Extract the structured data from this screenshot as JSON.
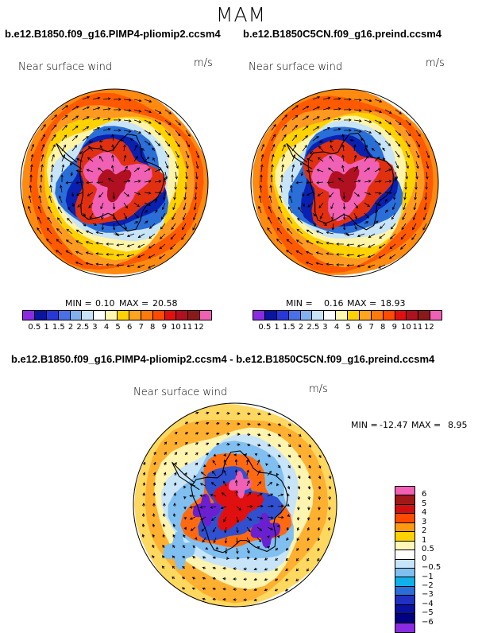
{
  "season": "MAM",
  "panels": [
    {
      "case_title": "b.e12.B1850.f09_g16.PIMP4-pliomip2.ccsm4",
      "field_label": "Near surface wind",
      "units": "m/s",
      "min_text": "MIN =",
      "min_value": "0.10",
      "max_text": "MAX =",
      "max_value": "20.58"
    },
    {
      "case_title": "b.e12.B1850C5CN.f09_g16.preind.ccsm4",
      "field_label": "Near surface wind",
      "units": "m/s",
      "min_text": "MIN =",
      "min_value": "0.16",
      "max_text": "MAX =",
      "max_value": "18.93"
    },
    {
      "case_title": "b.e12.B1850.f09_g16.PIMP4-pliomip2.ccsm4 - b.e12.B1850C5CN.f09_g16.preind.ccsm4",
      "field_label": "Near surface wind",
      "units": "m/s",
      "min_text": "MIN =",
      "min_value": "-12.47",
      "max_text": "MAX =",
      "max_value": "8.95"
    }
  ],
  "chart_data": [
    {
      "type": "heatmap",
      "title": "b.e12.B1850.f09_g16.PIMP4-pliomip2.ccsm4",
      "subtitle": "Near surface wind",
      "units": "m/s",
      "projection": "south polar stereographic",
      "min": 0.1,
      "max": 20.58,
      "colorbar_levels": [
        "0.5",
        "1",
        "1.5",
        "2",
        "2.5",
        "3",
        "4",
        "5",
        "6",
        "7",
        "8",
        "9",
        "10",
        "11",
        "12"
      ],
      "colorbar_colors": [
        "#8a2be2",
        "#0a14a0",
        "#2838d8",
        "#4a70e8",
        "#80b0f0",
        "#c8e4f8",
        "#ffffff",
        "#fff8b0",
        "#ffd200",
        "#ffa41c",
        "#ff7a0a",
        "#ff4a00",
        "#e01010",
        "#b01020",
        "#8a1a1a",
        "#f060b4"
      ]
    },
    {
      "type": "heatmap",
      "title": "b.e12.B1850C5CN.f09_g16.preind.ccsm4",
      "subtitle": "Near surface wind",
      "units": "m/s",
      "projection": "south polar stereographic",
      "min": 0.16,
      "max": 18.93,
      "colorbar_levels": [
        "0.5",
        "1",
        "1.5",
        "2",
        "2.5",
        "3",
        "4",
        "5",
        "6",
        "7",
        "8",
        "9",
        "10",
        "11",
        "12"
      ],
      "colorbar_colors": [
        "#8a2be2",
        "#0a14a0",
        "#2838d8",
        "#4a70e8",
        "#80b0f0",
        "#c8e4f8",
        "#ffffff",
        "#fff8b0",
        "#ffd200",
        "#ffa41c",
        "#ff7a0a",
        "#ff4a00",
        "#e01010",
        "#b01020",
        "#8a1a1a",
        "#f060b4"
      ]
    },
    {
      "type": "heatmap",
      "title": "b.e12.B1850.f09_g16.PIMP4-pliomip2.ccsm4 - b.e12.B1850C5CN.f09_g16.preind.ccsm4",
      "subtitle": "Near surface wind",
      "units": "m/s",
      "projection": "south polar stereographic",
      "min": -12.47,
      "max": 8.95,
      "colorbar_levels": [
        "6",
        "5",
        "4",
        "3",
        "2",
        "1",
        "0.5",
        "0",
        "−0.5",
        "−1",
        "−2",
        "−3",
        "−4",
        "−5",
        "−6"
      ],
      "colorbar_colors": [
        "#f060b4",
        "#a01818",
        "#d01010",
        "#ff4a00",
        "#ff9a10",
        "#ffd200",
        "#fff8b8",
        "#ffffff",
        "#c8e4f8",
        "#80bff0",
        "#10b0e8",
        "#2a6ed8",
        "#2030c0",
        "#0a10a0",
        "#000080",
        "#8a2be2"
      ]
    }
  ]
}
